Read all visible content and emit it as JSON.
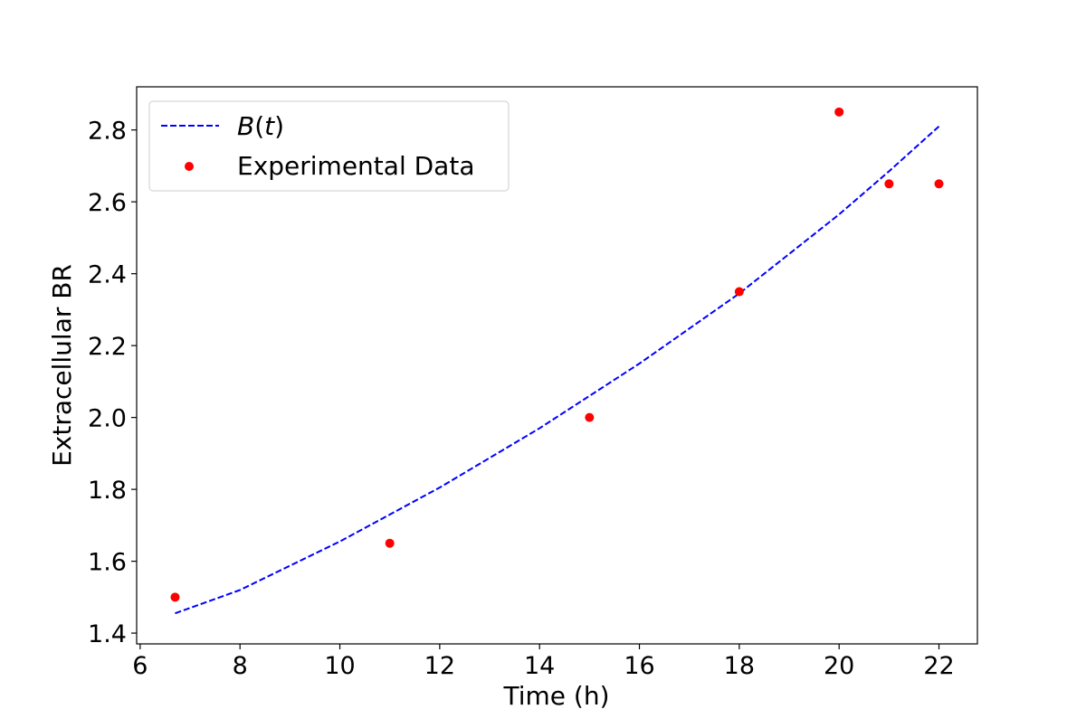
{
  "chart_data": {
    "type": "line",
    "title": "",
    "xlabel": "Time (h)",
    "ylabel": "Extracellular BR",
    "xlim": [
      5.93,
      22.77
    ],
    "ylim": [
      1.37,
      2.92
    ],
    "xticks": [
      6,
      8,
      10,
      12,
      14,
      16,
      18,
      20,
      22
    ],
    "yticks": [
      1.4,
      1.6,
      1.8,
      2.0,
      2.2,
      2.4,
      2.6,
      2.8
    ],
    "ytick_labels": [
      "1.4",
      "1.6",
      "1.8",
      "2.0",
      "2.2",
      "2.4",
      "2.6",
      "2.8"
    ],
    "grid": false,
    "legend_position": "top-left",
    "series": [
      {
        "name": "B(t)",
        "name_parts": {
          "italic_var": "B",
          "open": "(",
          "italic_arg": "t",
          "close": ")"
        },
        "kind": "line",
        "style": "dashed",
        "color": "#0000ff",
        "x": [
          6.7,
          8,
          10,
          12,
          14,
          16,
          18,
          20,
          21,
          22
        ],
        "y": [
          1.455,
          1.52,
          1.655,
          1.805,
          1.97,
          2.15,
          2.345,
          2.565,
          2.685,
          2.81
        ]
      },
      {
        "name": "Experimental Data",
        "kind": "scatter",
        "color": "#ff0000",
        "x": [
          6.7,
          11,
          15,
          18,
          20,
          21,
          22
        ],
        "y": [
          1.5,
          1.65,
          2.0,
          2.35,
          2.85,
          2.65,
          2.65
        ]
      }
    ]
  }
}
